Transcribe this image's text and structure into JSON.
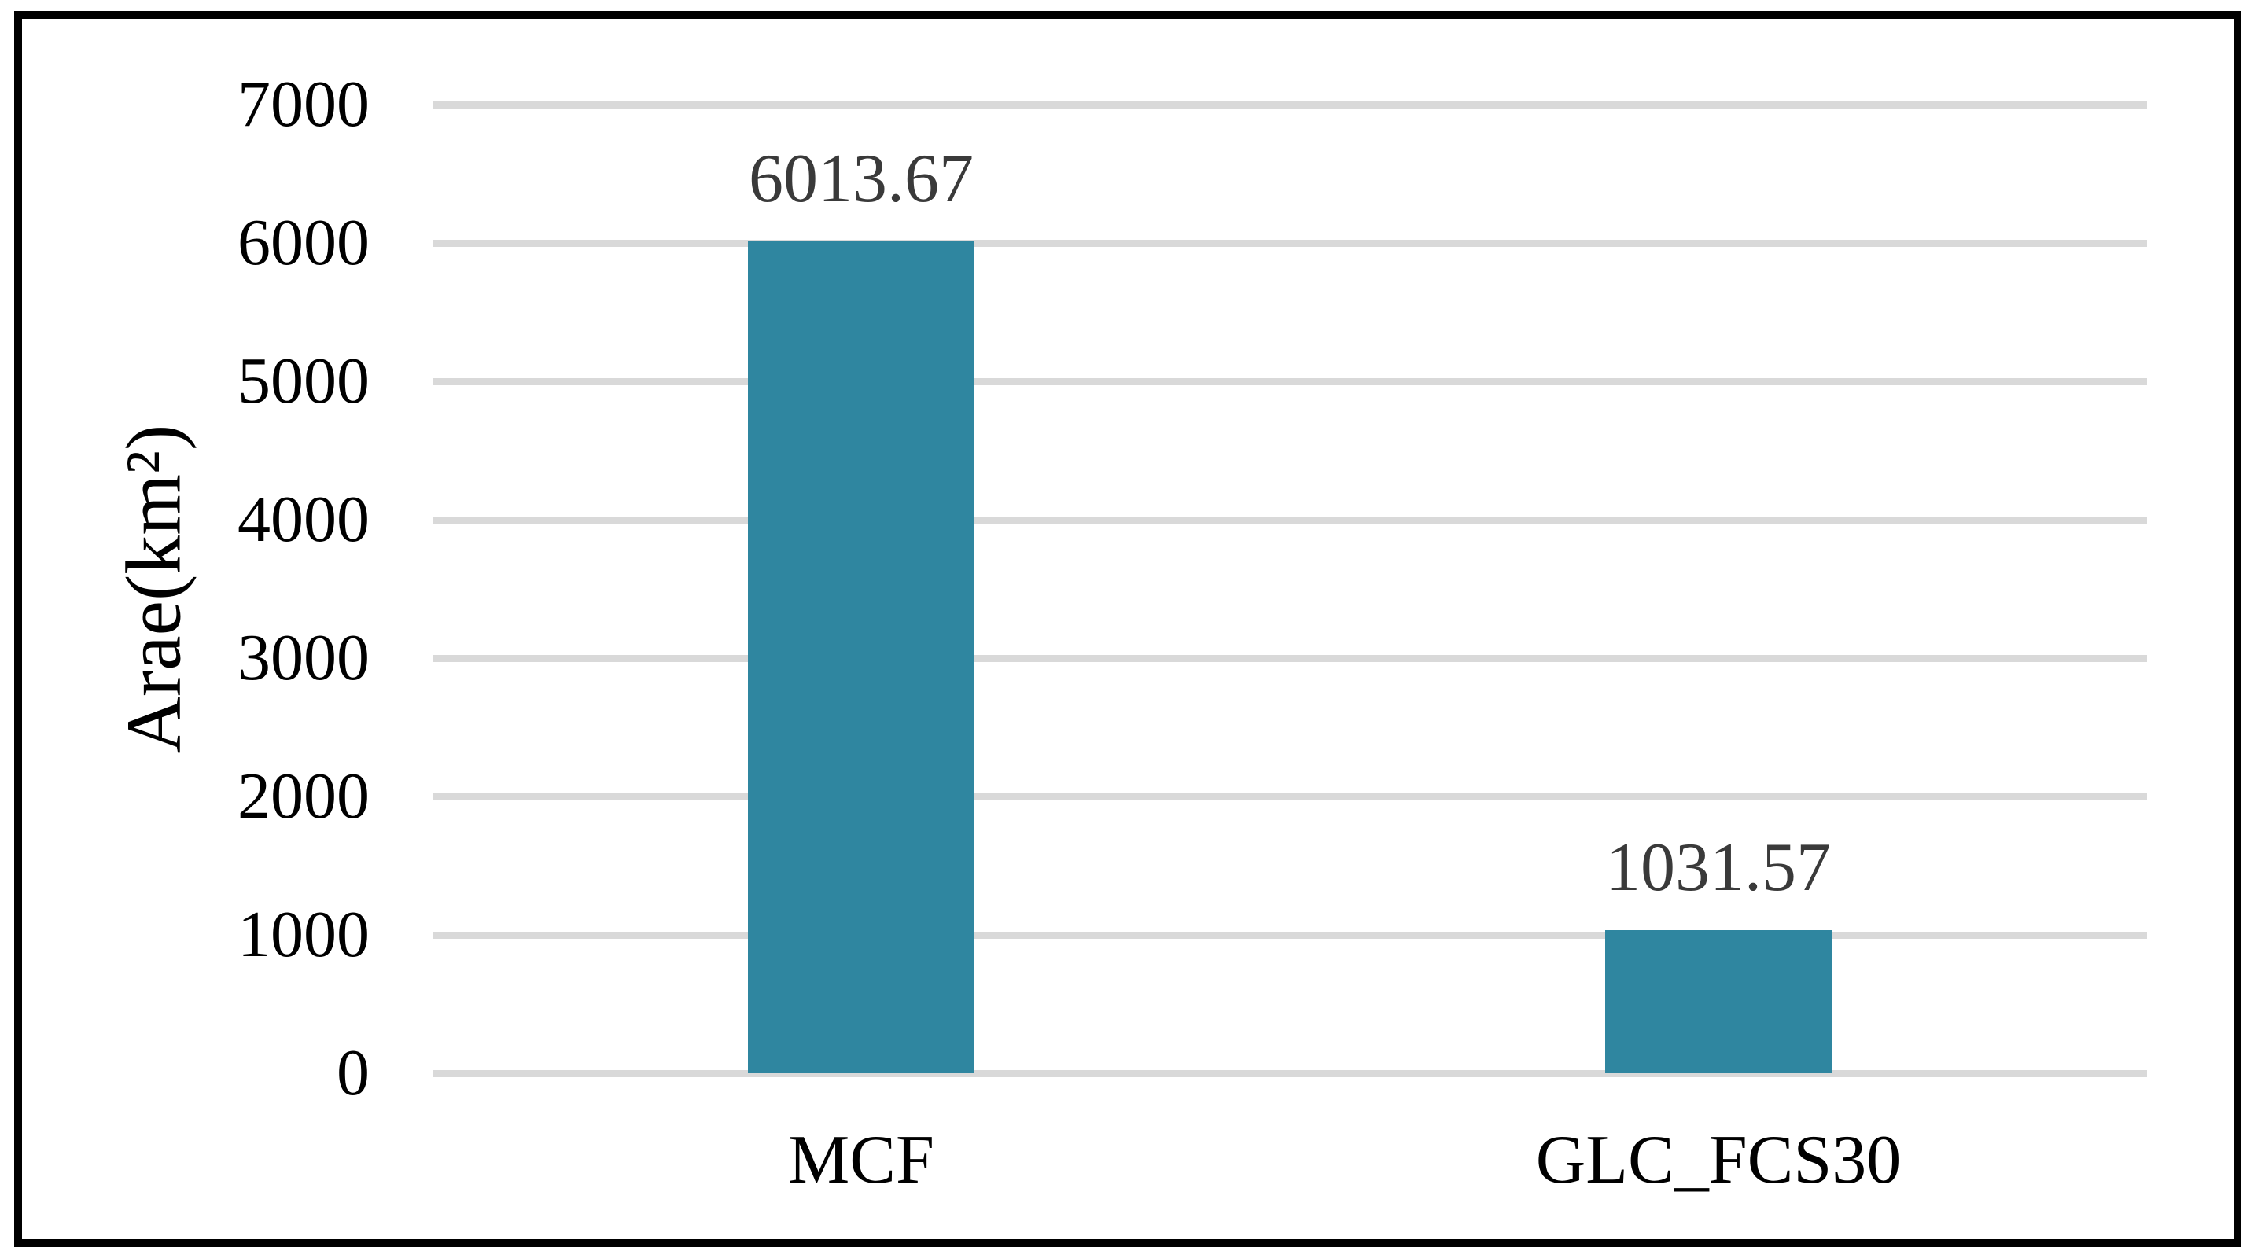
{
  "chart_data": {
    "type": "bar",
    "categories": [
      "MCF",
      "GLC_FCS30"
    ],
    "values": [
      6013.67,
      1031.57
    ],
    "value_labels": [
      "6013.67",
      "1031.57"
    ],
    "title": "",
    "xlabel": "",
    "ylabel": "Arae(km²)",
    "ylim": [
      0,
      7000
    ],
    "yticks": [
      0,
      1000,
      2000,
      3000,
      4000,
      5000,
      6000,
      7000
    ],
    "ytick_labels": [
      "0",
      "1000",
      "2000",
      "3000",
      "4000",
      "5000",
      "6000",
      "7000"
    ],
    "grid": "horizontal",
    "legend_position": "none",
    "bar_color": "#2F86A0",
    "gridline_color": "#D9D9D9",
    "frame_color": "#000000",
    "value_label_color": "#3A3A3A",
    "axis_text_color": "#000000"
  }
}
